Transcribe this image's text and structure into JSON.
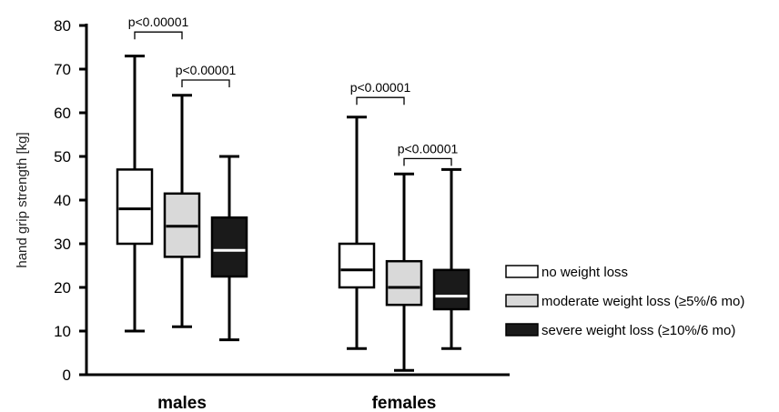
{
  "chart_data": {
    "type": "box",
    "title": "",
    "xlabel": "",
    "ylabel": "hand grip strength [kg]",
    "ylim": [
      0,
      80
    ],
    "yticks": [
      0,
      10,
      20,
      30,
      40,
      50,
      60,
      70,
      80
    ],
    "groups": [
      "males",
      "females"
    ],
    "series": [
      {
        "name": "no weight loss",
        "color": "#ffffff",
        "median_color": "#000000",
        "boxes": [
          {
            "min": 10,
            "q1": 30,
            "median": 38,
            "q3": 47,
            "max": 73
          },
          {
            "min": 6,
            "q1": 20,
            "median": 24,
            "q3": 30,
            "max": 59
          }
        ]
      },
      {
        "name": "moderate weight loss (≥5%/6 mo)",
        "color": "#d9d9d9",
        "median_color": "#000000",
        "boxes": [
          {
            "min": 11,
            "q1": 27,
            "median": 34,
            "q3": 41.5,
            "max": 64
          },
          {
            "min": 1,
            "q1": 16,
            "median": 20,
            "q3": 26,
            "max": 46
          }
        ]
      },
      {
        "name": "severe weight loss (≥10%/6 mo)",
        "color": "#1a1a1a",
        "median_color": "#ffffff",
        "boxes": [
          {
            "min": 8,
            "q1": 22.5,
            "median": 28.5,
            "q3": 36,
            "max": 50
          },
          {
            "min": 6,
            "q1": 15,
            "median": 18,
            "q3": 24,
            "max": 47
          }
        ]
      }
    ],
    "annotations": [
      {
        "text": "p<0.00001",
        "group": 0,
        "from_series": 0,
        "to_series": 1,
        "y": 78.5
      },
      {
        "text": "p<0.00001",
        "group": 0,
        "from_series": 1,
        "to_series": 2,
        "y": 67.5
      },
      {
        "text": "p<0.00001",
        "group": 1,
        "from_series": 0,
        "to_series": 1,
        "y": 63.5
      },
      {
        "text": "p<0.00001",
        "group": 1,
        "from_series": 1,
        "to_series": 2,
        "y": 49.5
      }
    ],
    "legend_position": "right",
    "grid": false
  }
}
